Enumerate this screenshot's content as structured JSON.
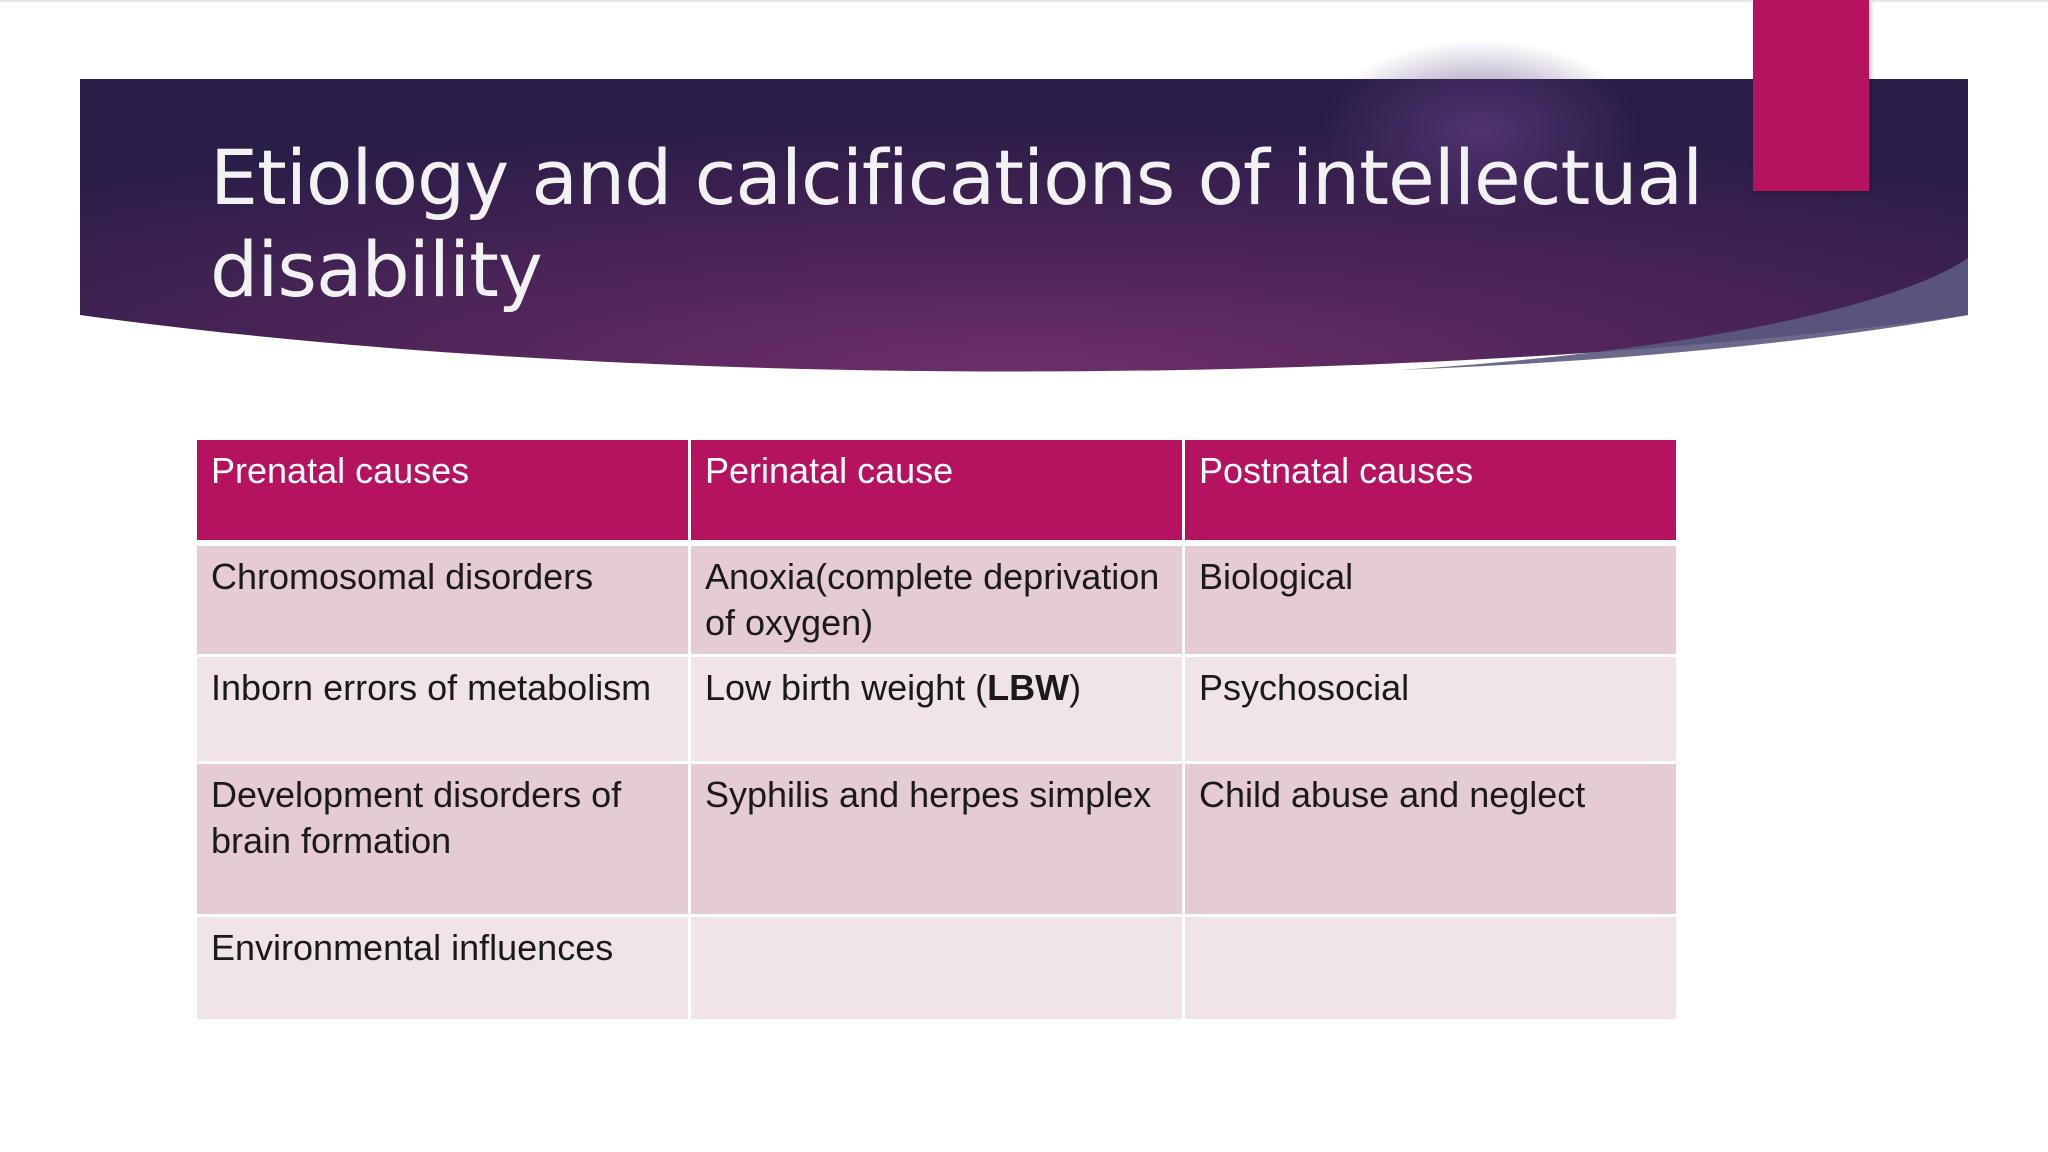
{
  "slide": {
    "title": "Etiology and calcifications of intellectual disability",
    "colors": {
      "banner_dark": "#2d1f4d",
      "banner_mid": "#6a2e68",
      "accent": "#b5135f",
      "row_dark": "#e5cbd2",
      "row_light": "#f1e4e8"
    }
  },
  "table": {
    "headers": [
      "Prenatal causes",
      "Perinatal cause",
      "Postnatal causes"
    ],
    "rows": [
      {
        "prenatal": "Chromosomal disorders",
        "perinatal": "Anoxia(complete deprivation of oxygen)",
        "postnatal": "Biological"
      },
      {
        "prenatal": "Inborn errors of metabolism",
        "perinatal_prefix": "Low birth weight (",
        "perinatal_abbr": "LBW",
        "perinatal_suffix": ")",
        "postnatal": "Psychosocial"
      },
      {
        "prenatal": "Development disorders of brain formation",
        "perinatal": "Syphilis and herpes simplex",
        "postnatal": "Child abuse and neglect"
      },
      {
        "prenatal": "Environmental influences",
        "perinatal": "",
        "postnatal": ""
      }
    ]
  }
}
